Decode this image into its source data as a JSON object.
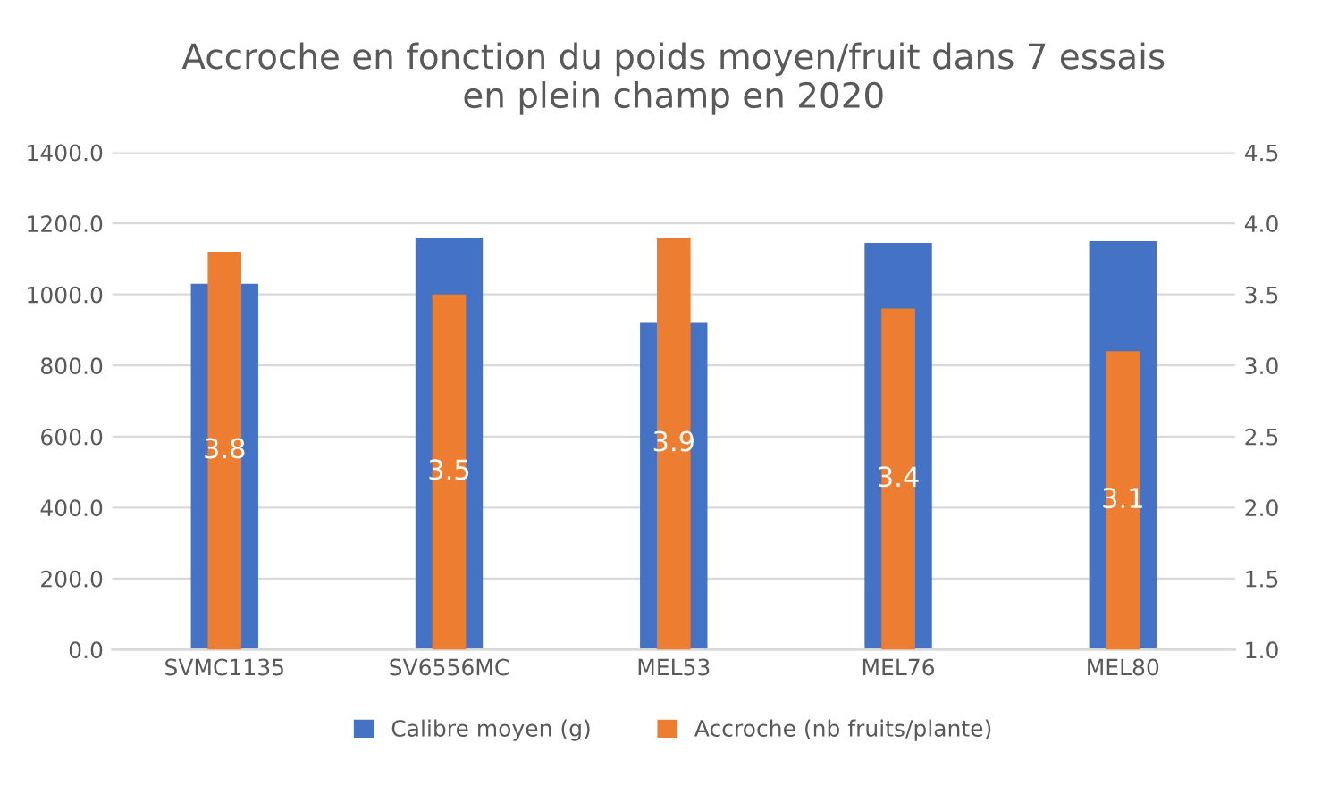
{
  "chart_data": {
    "type": "bar",
    "title": "Accroche en fonction du poids moyen/fruit dans 7 essais\nen plein champ en 2020",
    "categories": [
      "SVMC1135",
      "SV6556MC",
      "MEL53",
      "MEL76",
      "MEL80"
    ],
    "series": [
      {
        "name": "Calibre moyen (g)",
        "color": "#4472c4",
        "values": [
          1030,
          1160,
          920,
          1145,
          1150
        ]
      },
      {
        "name": "Accroche (nb fruits/plante)",
        "color": "#ed7d31",
        "axis": "y2",
        "values": [
          3.8,
          3.5,
          3.9,
          3.4,
          3.1
        ],
        "value_labels": [
          "3.8",
          "3.5",
          "3.9",
          "3.4",
          "3.1"
        ]
      }
    ],
    "ylim": [
      0,
      1400
    ],
    "yticks": [
      {
        "value": 0,
        "label": "0.0"
      },
      {
        "value": 200,
        "label": "200.0"
      },
      {
        "value": 400,
        "label": "400.0"
      },
      {
        "value": 600,
        "label": "600.0"
      },
      {
        "value": 800,
        "label": "800.0"
      },
      {
        "value": 1000,
        "label": "1000.0"
      },
      {
        "value": 1200,
        "label": "1200.0"
      },
      {
        "value": 1400,
        "label": "1400.0"
      }
    ],
    "y2lim": [
      1,
      4.5
    ],
    "y2ticks": [
      {
        "value": 1,
        "label": "1.0"
      },
      {
        "value": 1.5,
        "label": "1.5"
      },
      {
        "value": 2,
        "label": "2.0"
      },
      {
        "value": 2.5,
        "label": "2.5"
      },
      {
        "value": 3,
        "label": "3.0"
      },
      {
        "value": 3.5,
        "label": "3.5"
      },
      {
        "value": 4,
        "label": "4.0"
      },
      {
        "value": 4.5,
        "label": "4.5"
      }
    ],
    "grid": "y",
    "legend": "bottom"
  }
}
